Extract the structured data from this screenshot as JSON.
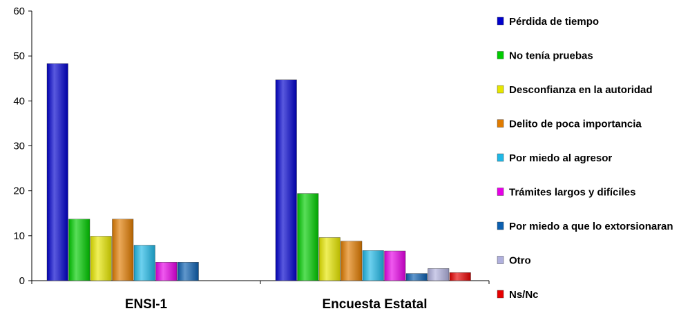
{
  "chart_data": {
    "type": "bar",
    "title": "",
    "xlabel": "",
    "ylabel": "",
    "ylim": [
      0,
      60
    ],
    "yticks": [
      0,
      10,
      20,
      30,
      40,
      50,
      60
    ],
    "grid": false,
    "legend_position": "right",
    "categories": [
      "ENSI-1",
      "Encuesta Estatal"
    ],
    "series": [
      {
        "name": "Pérdida de tiempo",
        "color": "#0000cc",
        "values": [
          48.3,
          44.7
        ]
      },
      {
        "name": "No tenía pruebas",
        "color": "#00cc00",
        "values": [
          13.7,
          19.4
        ]
      },
      {
        "name": "Desconfianza en la autoridad",
        "color": "#e6e600",
        "values": [
          9.9,
          9.6
        ]
      },
      {
        "name": "Delito de poca importancia",
        "color": "#e07b00",
        "values": [
          13.7,
          8.8
        ]
      },
      {
        "name": "Por miedo al agresor",
        "color": "#1fb8e6",
        "values": [
          7.9,
          6.7
        ]
      },
      {
        "name": "Trámites largos y difíciles",
        "color": "#e600e6",
        "values": [
          4.1,
          6.6
        ]
      },
      {
        "name": "Por miedo a que lo extorsionaran",
        "color": "#0b5fb0",
        "values": [
          4.1,
          1.6
        ]
      },
      {
        "name": "Otro",
        "color": "#b0b0dd",
        "values": [
          null,
          2.7
        ]
      },
      {
        "name": "Ns/Nc",
        "color": "#e60000",
        "values": [
          null,
          1.8
        ]
      }
    ]
  }
}
